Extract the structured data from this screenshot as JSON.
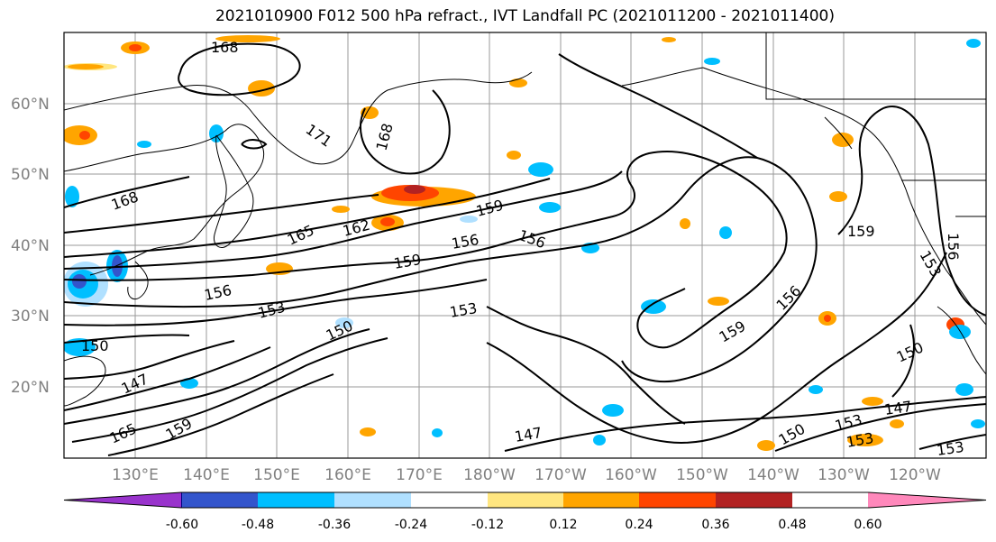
{
  "title": "2021010900 F012 500 hPa refract., IVT Landfall PC (2021011200 - 2021011400)",
  "lat_labels": [
    "60°N",
    "50°N",
    "40°N",
    "30°N",
    "20°N"
  ],
  "lon_labels": [
    "130°E",
    "140°E",
    "150°E",
    "160°E",
    "170°E",
    "180°W",
    "170°W",
    "160°W",
    "150°W",
    "140°W",
    "130°W",
    "120°W"
  ],
  "colorbar": {
    "ticks": [
      "-0.60",
      "-0.48",
      "-0.36",
      "-0.24",
      "-0.12",
      "0.12",
      "0.24",
      "0.36",
      "0.48",
      "0.60"
    ],
    "colors": [
      "#9933cc",
      "#000080",
      "#3355cc",
      "#00bfff",
      "#b0e0ff",
      "#ffffff",
      "#ffe680",
      "#ffa500",
      "#ff4500",
      "#b22222",
      "#ff88bb"
    ]
  },
  "contour_labels": [
    "168",
    "171",
    "168",
    "168",
    "165",
    "162",
    "159",
    "156",
    "156",
    "159",
    "156",
    "153",
    "153",
    "150",
    "150",
    "147",
    "147",
    "165",
    "159",
    "159",
    "156",
    "159",
    "153",
    "150",
    "147",
    "153",
    "150",
    "153",
    "156",
    "153"
  ]
}
